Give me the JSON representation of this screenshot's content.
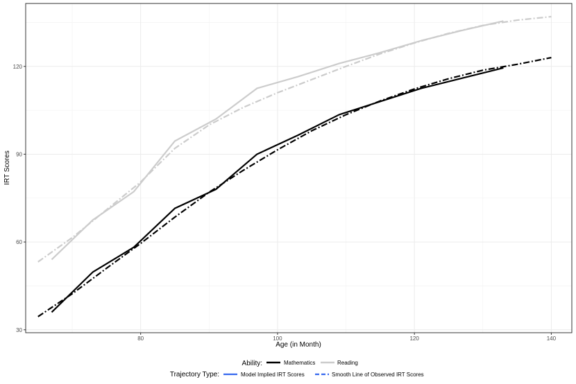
{
  "chart_data": {
    "type": "line",
    "xlabel": "Age (in Month)",
    "ylabel": "IRT Scores",
    "xlim": [
      63.2,
      143.0
    ],
    "ylim": [
      29.0,
      141.5
    ],
    "x_ticks": [
      80,
      100,
      120,
      140
    ],
    "y_ticks": [
      30,
      60,
      90,
      120
    ],
    "grid": true,
    "legend_position": "bottom",
    "legend": {
      "ability_title": "Ability:",
      "ability_items": [
        {
          "label": "Mathematics",
          "color": "#000000"
        },
        {
          "label": "Reading",
          "color": "#cccccc"
        }
      ],
      "trajectory_title": "Trajectory Type:",
      "trajectory_items": [
        {
          "label": "Model Implied IRT Scores",
          "color": "#3366ee",
          "dash": "solid"
        },
        {
          "label": "Smooth Line of Observed IRT Scores",
          "color": "#3366ee",
          "dash": "dashed"
        }
      ]
    },
    "series": [
      {
        "ability": "Mathematics",
        "trajectory": "Model Implied IRT Scores",
        "color": "#000000",
        "dash": "solid",
        "points": [
          [
            67,
            36
          ],
          [
            73,
            49.7
          ],
          [
            79,
            58.2
          ],
          [
            85,
            71.5
          ],
          [
            91,
            78
          ],
          [
            97,
            90
          ],
          [
            103,
            96.5
          ],
          [
            109,
            103.5
          ],
          [
            115,
            108
          ],
          [
            121,
            112.5
          ],
          [
            127,
            116
          ],
          [
            133,
            119.5
          ]
        ]
      },
      {
        "ability": "Mathematics",
        "trajectory": "Smooth Line of Observed IRT Scores",
        "color": "#000000",
        "dash": "dashdot",
        "points": [
          [
            65,
            34.5
          ],
          [
            70,
            42.3
          ],
          [
            75,
            51
          ],
          [
            80,
            59.5
          ],
          [
            85,
            68.5
          ],
          [
            90,
            77
          ],
          [
            95,
            84.5
          ],
          [
            100,
            91.5
          ],
          [
            105,
            98
          ],
          [
            110,
            103.5
          ],
          [
            115,
            108.2
          ],
          [
            120,
            112.3
          ],
          [
            125,
            115.8
          ],
          [
            130,
            118.7
          ],
          [
            135,
            120.7
          ],
          [
            140,
            123
          ]
        ]
      },
      {
        "ability": "Reading",
        "trajectory": "Model Implied IRT Scores",
        "color": "#cccccc",
        "dash": "solid",
        "points": [
          [
            67,
            54
          ],
          [
            73,
            67.5
          ],
          [
            79,
            77.2
          ],
          [
            85,
            94.5
          ],
          [
            91,
            102
          ],
          [
            97,
            112.5
          ],
          [
            103,
            116.5
          ],
          [
            109,
            121
          ],
          [
            115,
            124.7
          ],
          [
            121,
            128.8
          ],
          [
            127,
            132.3
          ],
          [
            133,
            135.5
          ]
        ]
      },
      {
        "ability": "Reading",
        "trajectory": "Smooth Line of Observed IRT Scores",
        "color": "#cccccc",
        "dash": "dashdot",
        "points": [
          [
            65,
            53.2
          ],
          [
            70,
            61.5
          ],
          [
            75,
            71
          ],
          [
            80,
            80.5
          ],
          [
            85,
            92
          ],
          [
            90,
            100
          ],
          [
            95,
            106
          ],
          [
            100,
            111
          ],
          [
            105,
            115.5
          ],
          [
            110,
            120
          ],
          [
            115,
            124.3
          ],
          [
            120,
            128
          ],
          [
            125,
            131.3
          ],
          [
            130,
            134
          ],
          [
            135,
            135.8
          ],
          [
            140,
            137
          ]
        ]
      }
    ]
  }
}
